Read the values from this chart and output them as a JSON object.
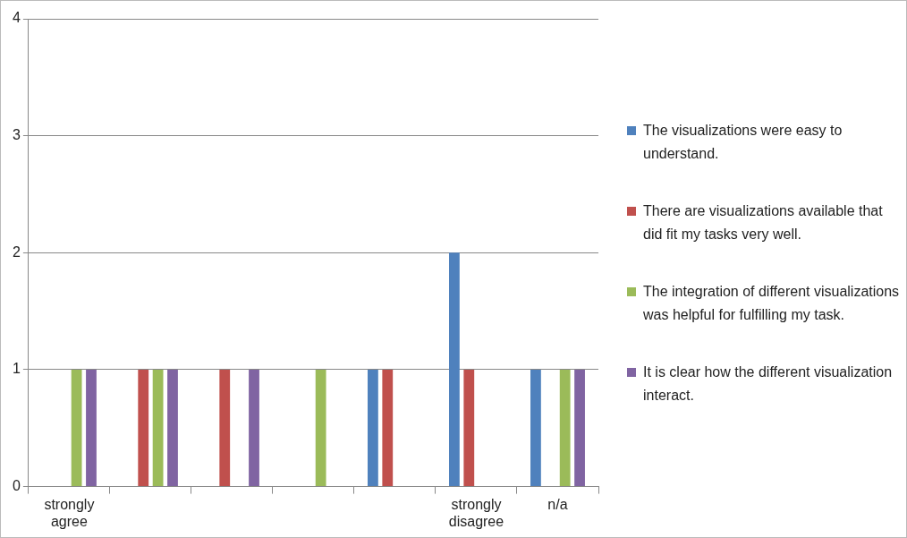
{
  "chart_data": {
    "type": "bar",
    "categories": [
      "strongly agree",
      null,
      null,
      null,
      null,
      "strongly disagree",
      "n/a"
    ],
    "series": [
      {
        "name": "The visualizations were easy to understand.",
        "color": "#4f81bd",
        "values": [
          0,
          0,
          0,
          0,
          1,
          2,
          1
        ]
      },
      {
        "name": "There are visualizations available that did fit my tasks very well.",
        "color": "#c0504d",
        "values": [
          0,
          1,
          1,
          0,
          1,
          1,
          0
        ]
      },
      {
        "name": "The integration of different visualizations was helpful for fulfilling my task.",
        "color": "#9bbb59",
        "values": [
          1,
          1,
          0,
          1,
          0,
          0,
          1
        ]
      },
      {
        "name": "It is clear how the different visualization interact.",
        "color": "#8064a2",
        "values": [
          1,
          1,
          1,
          0,
          0,
          0,
          1
        ]
      }
    ],
    "ylim": [
      0,
      4
    ],
    "yticks": [
      0,
      1,
      2,
      3,
      4
    ],
    "grid": "y",
    "legend": "right"
  }
}
